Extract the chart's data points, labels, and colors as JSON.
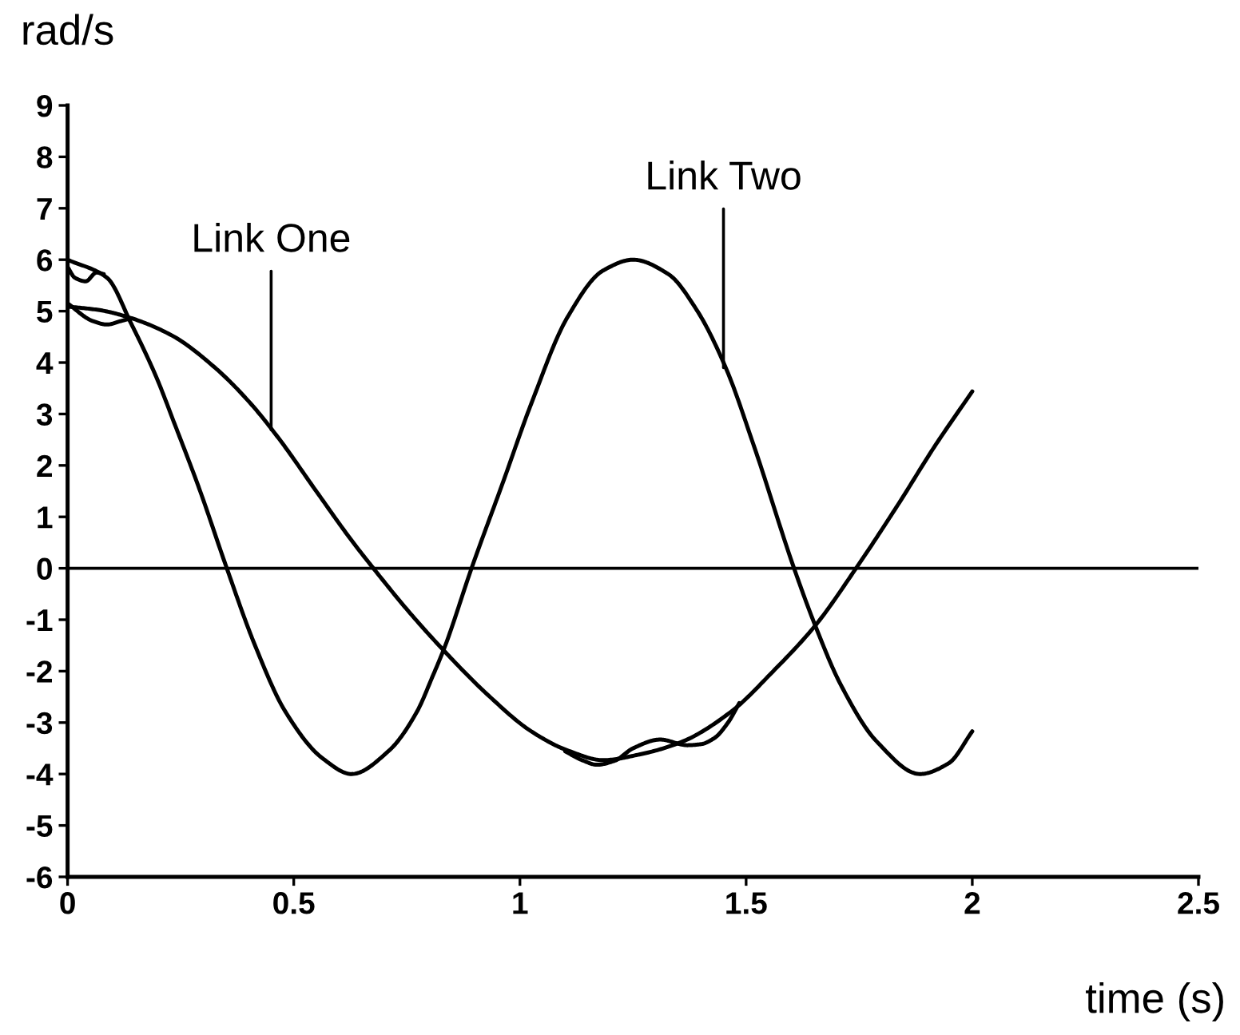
{
  "chart_data": {
    "type": "line",
    "xlabel": "time (s)",
    "ylabel": "rad/s",
    "xlim": [
      0,
      2.5
    ],
    "ylim": [
      -6,
      9
    ],
    "xticks": [
      0,
      0.5,
      1,
      1.5,
      2,
      2.5
    ],
    "yticks": [
      -6,
      -5,
      -4,
      -3,
      -2,
      -1,
      0,
      1,
      2,
      3,
      4,
      5,
      6,
      7,
      8,
      9
    ],
    "grid": false,
    "ref_lines": [
      {
        "axis": "y",
        "value": 0,
        "color": "#000000"
      }
    ],
    "annotations": [
      {
        "text": "Link One",
        "x": 0.45,
        "y": 2.69
      },
      {
        "text": "Link Two",
        "x": 1.45,
        "y": 3.9
      }
    ],
    "series": [
      {
        "color": "#000000",
        "x": [
          0,
          0.071,
          0.135,
          0.23,
          0.326,
          0.405,
          0.469,
          0.548,
          0.628,
          0.676,
          0.755,
          0.835,
          0.93,
          1.025,
          1.105,
          1.184,
          1.264,
          1.359,
          1.465,
          1.56,
          1.655,
          1.743,
          1.836,
          1.916,
          2.0
        ],
        "values": [
          5.09,
          5.02,
          4.88,
          4.53,
          3.9,
          3.2,
          2.5,
          1.52,
          0.54,
          0,
          -0.85,
          -1.63,
          -2.47,
          -3.17,
          -3.54,
          -3.73,
          -3.62,
          -3.37,
          -2.8,
          -2.0,
          -1.09,
          0,
          1.24,
          2.36,
          3.44
        ]
      },
      {
        "color": "#000000",
        "x": [
          0,
          0.087,
          0.141,
          0.196,
          0.236,
          0.291,
          0.352,
          0.413,
          0.481,
          0.563,
          0.628,
          0.71,
          0.771,
          0.807,
          0.835,
          0.893,
          0.962,
          1.025,
          1.105,
          1.184,
          1.25,
          1.328,
          1.391,
          1.455,
          1.518,
          1.606,
          1.654,
          1.709,
          1.789,
          1.884,
          1.948,
          2.0
        ],
        "values": [
          6.0,
          5.65,
          4.75,
          3.72,
          2.82,
          1.55,
          0,
          -1.47,
          -2.78,
          -3.69,
          -4.0,
          -3.55,
          -2.81,
          -2.1,
          -1.5,
          0,
          1.66,
          3.2,
          4.88,
          5.79,
          6.0,
          5.72,
          5.02,
          3.9,
          2.36,
          0,
          -1.14,
          -2.26,
          -3.37,
          -4.0,
          -3.79,
          -3.17
        ]
      },
      {
        "color": "#000000",
        "x": [
          0,
          0.016,
          0.04,
          0.064,
          0.08
        ],
        "values": [
          5.86,
          5.65,
          5.58,
          5.75,
          5.72
        ]
      },
      {
        "color": "#000000",
        "x": [
          0,
          0.055,
          0.087,
          0.119,
          0.14,
          0.6,
          1.1,
          1.14,
          1.17,
          1.21,
          1.25,
          1.31,
          1.37,
          1.4,
          1.43,
          1.46,
          1.485
        ],
        "values": [
          5.15,
          4.81,
          4.74,
          4.81,
          4.86,
          null,
          -3.56,
          -3.74,
          -3.82,
          -3.74,
          -3.5,
          -3.33,
          -3.44,
          -3.42,
          -3.3,
          -3.0,
          -2.62
        ]
      }
    ]
  }
}
